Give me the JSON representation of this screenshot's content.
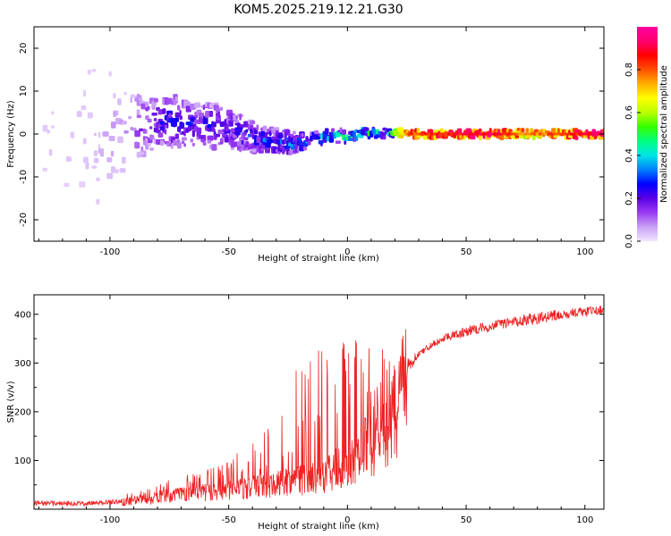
{
  "title": "KOM5.2025.219.12.21.G30",
  "chart_data": [
    {
      "type": "heatmap",
      "title": "KOM5.2025.219.12.21.G30",
      "xlabel": "Height of straight line (km)",
      "ylabel": "Frequency (Hz)",
      "xlim": [
        -132,
        108
      ],
      "ylim": [
        -25,
        25
      ],
      "x_ticks": [
        -100,
        -50,
        0,
        50,
        100
      ],
      "y_ticks": [
        -20,
        -10,
        0,
        10,
        20
      ],
      "x_tick_labels": [
        "-100",
        "-50",
        "0",
        "50",
        "100"
      ],
      "y_tick_labels": [
        "-20",
        "-10",
        "0",
        "10",
        "20"
      ],
      "colorbar": {
        "label": "Normalized spectral amplitude",
        "range": [
          0,
          1
        ],
        "ticks": [
          0.0,
          0.2,
          0.4,
          0.6,
          0.8
        ],
        "tick_labels": [
          "0.0",
          "0.2",
          "0.4",
          "0.6",
          "0.8"
        ],
        "colors": [
          "#f2e6ff",
          "#c9a0f5",
          "#9a3cf2",
          "#5a00e6",
          "#0000ff",
          "#0080ff",
          "#00e5e5",
          "#00ff80",
          "#33ff00",
          "#b8ff00",
          "#ffff00",
          "#ffb000",
          "#ff5000",
          "#ff0000",
          "#ff0070",
          "#ff00a0"
        ]
      },
      "ridge": [
        {
          "x": -132,
          "f": 0.0,
          "amp": 0.02,
          "spread": 22
        },
        {
          "x": -110,
          "f": 0.0,
          "amp": 0.03,
          "spread": 20
        },
        {
          "x": -95,
          "f": 1.0,
          "amp": 0.08,
          "spread": 10
        },
        {
          "x": -85,
          "f": 2.0,
          "amp": 0.16,
          "spread": 6
        },
        {
          "x": -75,
          "f": 3.0,
          "amp": 0.22,
          "spread": 6
        },
        {
          "x": -65,
          "f": 2.5,
          "amp": 0.2,
          "spread": 5
        },
        {
          "x": -55,
          "f": 1.5,
          "amp": 0.2,
          "spread": 5
        },
        {
          "x": -45,
          "f": 0.0,
          "amp": 0.22,
          "spread": 4
        },
        {
          "x": -35,
          "f": -1.5,
          "amp": 0.26,
          "spread": 3
        },
        {
          "x": -25,
          "f": -2.0,
          "amp": 0.3,
          "spread": 2.5
        },
        {
          "x": -15,
          "f": -1.2,
          "amp": 0.32,
          "spread": 1.8
        },
        {
          "x": -5,
          "f": -0.5,
          "amp": 0.42,
          "spread": 1.5
        },
        {
          "x": 0,
          "f": -0.5,
          "amp": 0.45,
          "spread": 1.3
        },
        {
          "x": 5,
          "f": 0.2,
          "amp": 0.42,
          "spread": 1.2
        },
        {
          "x": 15,
          "f": 0.2,
          "amp": 0.4,
          "spread": 1.0
        },
        {
          "x": 25,
          "f": 0.1,
          "amp": 0.8,
          "spread": 0.9
        },
        {
          "x": 40,
          "f": 0.0,
          "amp": 0.85,
          "spread": 0.9
        },
        {
          "x": 60,
          "f": 0.0,
          "amp": 0.9,
          "spread": 0.9
        },
        {
          "x": 75,
          "f": 0.0,
          "amp": 0.75,
          "spread": 0.9
        },
        {
          "x": 90,
          "f": 0.0,
          "amp": 0.82,
          "spread": 0.9
        },
        {
          "x": 108,
          "f": 0.0,
          "amp": 0.95,
          "spread": 0.9
        }
      ]
    },
    {
      "type": "line",
      "xlabel": "Height of straight line (km)",
      "ylabel": "SNR (v/v)",
      "xlim": [
        -132,
        108
      ],
      "ylim": [
        0,
        440
      ],
      "x_ticks": [
        -100,
        -50,
        0,
        50,
        100
      ],
      "y_ticks": [
        100,
        200,
        300,
        400
      ],
      "x_tick_labels": [
        "-100",
        "-50",
        "0",
        "50",
        "100"
      ],
      "y_tick_labels": [
        "100",
        "200",
        "300",
        "400"
      ],
      "series": [
        {
          "name": "SNR",
          "color": "#ee2222",
          "envelope_x": [
            -132,
            -110,
            -100,
            -90,
            -80,
            -70,
            -60,
            -50,
            -40,
            -30,
            -20,
            -10,
            0,
            10,
            20,
            25,
            30,
            40,
            50,
            60,
            70,
            80,
            90,
            100,
            108
          ],
          "envelope_base": [
            12,
            12,
            14,
            20,
            28,
            35,
            40,
            45,
            55,
            60,
            70,
            80,
            110,
            160,
            240,
            290,
            320,
            350,
            365,
            375,
            385,
            392,
            400,
            405,
            410
          ],
          "envelope_spike": [
            18,
            20,
            25,
            35,
            50,
            70,
            80,
            100,
            150,
            220,
            300,
            340,
            360,
            340,
            320,
            320,
            330,
            360,
            380,
            390,
            400,
            410,
            415,
            420,
            425
          ]
        }
      ]
    }
  ]
}
